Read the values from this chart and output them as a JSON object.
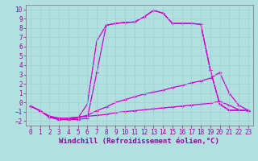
{
  "bg_color": "#b2e0e0",
  "grid_color": "#c8e8e8",
  "line_color": "#cc00cc",
  "xlabel": "Windchill (Refroidissement éolien,°C)",
  "xlim": [
    -0.5,
    23.5
  ],
  "ylim": [
    -2.5,
    10.5
  ],
  "yticks": [
    -2,
    -1,
    0,
    1,
    2,
    3,
    4,
    5,
    6,
    7,
    8,
    9,
    10
  ],
  "xticks": [
    0,
    1,
    2,
    3,
    4,
    5,
    6,
    7,
    8,
    9,
    10,
    11,
    12,
    13,
    14,
    15,
    16,
    17,
    18,
    19,
    20,
    21,
    22,
    23
  ],
  "line1_x": [
    0,
    1,
    2,
    3,
    4,
    5,
    6,
    7,
    8,
    9,
    10,
    11,
    12,
    13,
    14,
    15,
    16,
    17,
    18,
    19,
    20,
    21,
    22,
    23
  ],
  "line1_y": [
    -0.4,
    -0.9,
    -1.6,
    -1.85,
    -1.85,
    -1.85,
    -1.7,
    3.2,
    8.3,
    8.5,
    8.6,
    8.65,
    9.2,
    9.9,
    9.6,
    8.5,
    8.5,
    8.5,
    8.4,
    3.5,
    -0.2,
    -0.85,
    -0.85,
    -0.9
  ],
  "line2_x": [
    0,
    1,
    2,
    3,
    4,
    5,
    6,
    7,
    8,
    9,
    10,
    11,
    12,
    13,
    14,
    15,
    16,
    17,
    18,
    19,
    20,
    21,
    22,
    23
  ],
  "line2_y": [
    -0.4,
    -0.9,
    -1.6,
    -1.85,
    -1.85,
    -1.7,
    -0.2,
    6.6,
    8.3,
    8.5,
    8.6,
    8.65,
    9.2,
    9.9,
    9.6,
    8.5,
    8.5,
    8.5,
    8.4,
    3.5,
    -0.2,
    -0.85,
    -0.85,
    -0.9
  ],
  "line3_x": [
    0,
    1,
    2,
    3,
    4,
    5,
    6,
    7,
    8,
    9,
    10,
    11,
    12,
    13,
    14,
    15,
    16,
    17,
    18,
    19,
    20,
    21,
    22,
    23
  ],
  "line3_y": [
    -0.4,
    -0.9,
    -1.5,
    -1.7,
    -1.7,
    -1.6,
    -1.4,
    -0.9,
    -0.5,
    0.0,
    0.3,
    0.6,
    0.9,
    1.1,
    1.3,
    1.6,
    1.8,
    2.1,
    2.3,
    2.6,
    3.2,
    1.0,
    -0.3,
    -0.85
  ],
  "line4_x": [
    0,
    1,
    2,
    3,
    4,
    5,
    6,
    7,
    8,
    9,
    10,
    11,
    12,
    13,
    14,
    15,
    16,
    17,
    18,
    19,
    20,
    21,
    22,
    23
  ],
  "line4_y": [
    -0.4,
    -0.9,
    -1.5,
    -1.7,
    -1.7,
    -1.6,
    -1.5,
    -1.4,
    -1.3,
    -1.1,
    -1.0,
    -0.9,
    -0.8,
    -0.7,
    -0.6,
    -0.5,
    -0.4,
    -0.3,
    -0.2,
    -0.1,
    0.1,
    -0.3,
    -0.8,
    -0.9
  ],
  "marker_size": 3,
  "linewidth": 0.9,
  "font_color": "#990099",
  "tick_font_size": 5.5,
  "label_font_size": 6.5
}
